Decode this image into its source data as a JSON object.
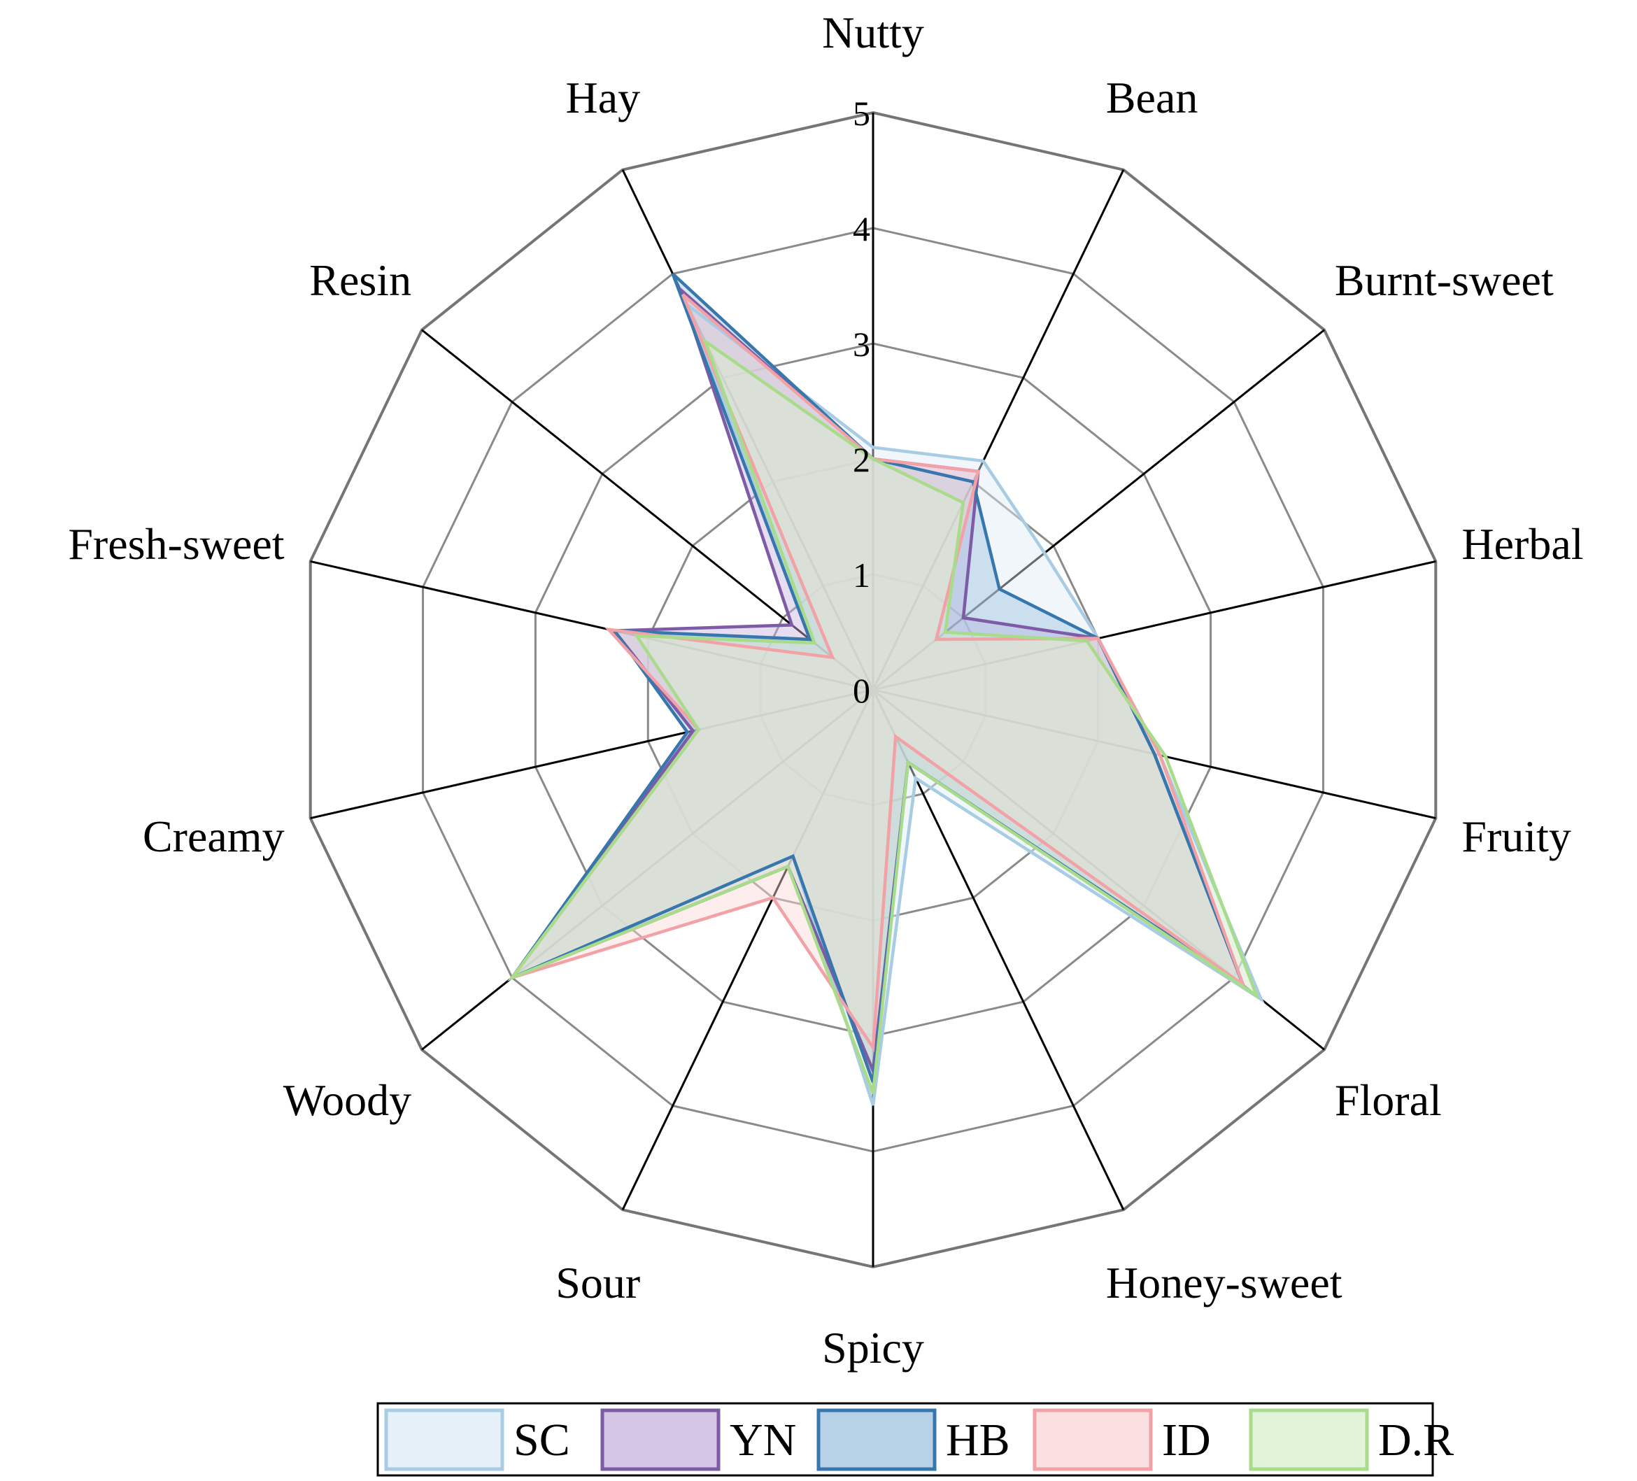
{
  "chart_data": {
    "type": "radar",
    "categories": [
      "Nutty",
      "Bean",
      "Burnt-sweet",
      "Herbal",
      "Fruity",
      "Floral",
      "Honey-sweet",
      "Spicy",
      "Sour",
      "Woody",
      "Creamy",
      "Fresh-sweet",
      "Resin",
      "Hay"
    ],
    "ticks": [
      "0",
      "1",
      "2",
      "3",
      "4",
      "5"
    ],
    "rlim": [
      0,
      5
    ],
    "grid": true,
    "legend_position": "bottom",
    "series": [
      {
        "name": "SC",
        "values": [
          2.1,
          2.2,
          1.9,
          2.0,
          2.55,
          4.3,
          0.85,
          3.6,
          1.6,
          4.0,
          1.6,
          2.3,
          0.7,
          3.7
        ],
        "color": "#a8cce3",
        "fill": "#ddebf5"
      },
      {
        "name": "YN",
        "values": [
          2.0,
          2.1,
          1.0,
          2.0,
          2.5,
          4.1,
          0.7,
          3.3,
          1.7,
          4.0,
          1.6,
          2.3,
          0.9,
          3.85
        ],
        "color": "#7d5ba6",
        "fill": "#c7b3dd"
      },
      {
        "name": "HB",
        "values": [
          2.0,
          2.0,
          1.4,
          2.0,
          2.5,
          4.1,
          0.7,
          3.4,
          1.6,
          4.0,
          1.65,
          2.3,
          0.7,
          4.0
        ],
        "color": "#3777ad",
        "fill": "#9fc3df"
      },
      {
        "name": "ID",
        "values": [
          2.0,
          2.1,
          0.7,
          2.0,
          2.55,
          4.1,
          0.45,
          3.1,
          2.0,
          4.0,
          1.55,
          2.35,
          0.45,
          3.8
        ],
        "color": "#f2a2a6",
        "fill": "#fad6d8"
      },
      {
        "name": "D.R",
        "values": [
          2.0,
          1.8,
          0.8,
          1.9,
          2.6,
          4.25,
          0.7,
          3.5,
          1.7,
          4.0,
          1.55,
          2.1,
          0.65,
          3.35
        ],
        "color": "#a9dc8a",
        "fill": "#d9efcd"
      }
    ]
  }
}
